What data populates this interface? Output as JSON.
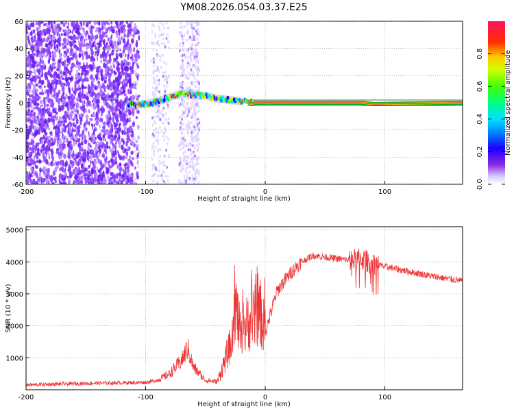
{
  "title": "YM08.2026.054.03.37.E25",
  "chart_data": [
    {
      "type": "heatmap",
      "title": "YM08.2026.054.03.37.E25",
      "xlabel": "Height of straight line (km)",
      "ylabel": "Frequency (Hz)",
      "xlim": [
        -200,
        165
      ],
      "ylim": [
        -60,
        60
      ],
      "x_ticks": [
        "-200",
        "-100",
        "0",
        "100"
      ],
      "y_ticks": [
        "60",
        "40",
        "20",
        "0",
        "-20",
        "-40",
        "-60"
      ],
      "colorbar": {
        "label": "Normalized spectral amplitude",
        "ticks": [
          "0.0",
          "0.2",
          "0.4",
          "0.6",
          "0.8"
        ],
        "range": [
          0,
          1
        ]
      },
      "grid": true,
      "description_ridge": {
        "x": [
          -115,
          -100,
          -90,
          -80,
          -70,
          -60,
          -50,
          -40,
          -30,
          -20,
          -10,
          0,
          50,
          80,
          90,
          165
        ],
        "freq_hz": [
          -2,
          -1,
          1,
          4,
          7,
          6,
          5,
          3,
          2,
          1,
          0,
          0,
          0,
          0,
          -1,
          0
        ]
      }
    },
    {
      "type": "line",
      "xlabel": "Height of straight line (km)",
      "ylabel": "SNR (10 * v/v)",
      "xlim": [
        -200,
        165
      ],
      "ylim": [
        0,
        5100
      ],
      "x_ticks": [
        "-200",
        "-100",
        "0",
        "100"
      ],
      "y_ticks": [
        "5000",
        "4000",
        "3000",
        "2000",
        "1000"
      ],
      "grid": true,
      "series": [
        {
          "name": "SNR",
          "color": "#ee3333",
          "x": [
            -200,
            -150,
            -100,
            -90,
            -80,
            -70,
            -65,
            -60,
            -50,
            -40,
            -30,
            -25,
            -20,
            -15,
            -10,
            -5,
            0,
            10,
            20,
            30,
            40,
            50,
            60,
            70,
            80,
            90,
            100,
            120,
            140,
            165
          ],
          "values": [
            150,
            200,
            230,
            300,
            500,
            900,
            1300,
            700,
            300,
            250,
            1300,
            2700,
            1500,
            2100,
            2200,
            2500,
            1800,
            3100,
            3600,
            4000,
            4200,
            4150,
            4100,
            4050,
            4100,
            3950,
            3850,
            3700,
            3550,
            3400
          ]
        }
      ]
    }
  ],
  "colors": {
    "snr_line": "#ee3333",
    "grid": "#999999",
    "heat_low": "#7a28ff"
  }
}
